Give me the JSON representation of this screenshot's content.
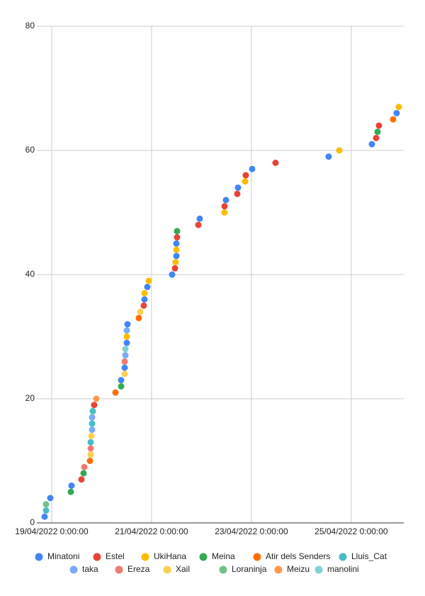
{
  "chart_data": {
    "type": "scatter",
    "xlim": [
      "2022-04-18T16:51",
      "2022-04-26T01:14"
    ],
    "xticks": [
      {
        "value": "2022-04-19T00:00",
        "label": "19/04/2022 0:00:00"
      },
      {
        "value": "2022-04-21T00:00",
        "label": "21/04/2022 0:00:00"
      },
      {
        "value": "2022-04-23T00:00",
        "label": "23/04/2022 0:00:00"
      },
      {
        "value": "2022-04-25T00:00",
        "label": "25/04/2022 0:00:00"
      }
    ],
    "ylim": [
      0,
      80
    ],
    "yticks": [
      0,
      20,
      40,
      60,
      80
    ],
    "grid": true,
    "legend": "bottom",
    "series": [
      {
        "name": "Minatoni",
        "color": "#4285f4",
        "values": [
          1,
          4,
          6,
          23,
          25,
          29,
          32,
          36,
          38,
          40,
          43,
          45,
          49,
          52,
          54,
          57,
          59,
          61,
          66
        ],
        "x": [
          "2022-04-18T20:36",
          "2022-04-18T23:19",
          "2022-04-19T09:32",
          "2022-04-20T09:22",
          "2022-04-20T11:04",
          "2022-04-20T12:06",
          "2022-04-20T12:26",
          "2022-04-20T20:36",
          "2022-04-20T21:58",
          "2022-04-21T09:53",
          "2022-04-21T11:56",
          "2022-04-21T11:56",
          "2022-04-21T23:10",
          "2022-04-22T11:46",
          "2022-04-22T17:33",
          "2022-04-23T00:22",
          "2022-04-24T13:08",
          "2022-04-25T09:54",
          "2022-04-25T21:49"
        ]
      },
      {
        "name": "Estel",
        "color": "#ea4335",
        "values": [
          7,
          19,
          35,
          41,
          46,
          48,
          51,
          53,
          56,
          58,
          62,
          64
        ],
        "x": [
          "2022-04-19T14:18",
          "2022-04-19T20:26",
          "2022-04-20T20:16",
          "2022-04-21T11:15",
          "2022-04-21T12:16",
          "2022-04-21T22:29",
          "2022-04-22T11:05",
          "2022-04-22T17:13",
          "2022-04-22T21:18",
          "2022-04-23T11:36",
          "2022-04-25T11:57",
          "2022-04-25T13:19"
        ]
      },
      {
        "name": "UkiHana",
        "color": "#fbbc04",
        "values": [
          30,
          37,
          39,
          42,
          44,
          50,
          55,
          60,
          67
        ],
        "x": [
          "2022-04-20T12:06",
          "2022-04-20T20:36",
          "2022-04-20T22:39",
          "2022-04-21T11:35",
          "2022-04-21T11:56",
          "2022-04-22T11:05",
          "2022-04-22T20:57",
          "2022-04-24T18:15",
          "2022-04-25T22:51"
        ]
      },
      {
        "name": "Meina",
        "color": "#34a853",
        "values": [
          5,
          8,
          22,
          47,
          63
        ],
        "x": [
          "2022-04-19T09:12",
          "2022-04-19T15:19",
          "2022-04-20T09:22",
          "2022-04-21T12:16",
          "2022-04-25T12:38"
        ]
      },
      {
        "name": "Atir dels Senders",
        "color": "#ff6d01",
        "values": [
          10,
          21,
          33,
          65
        ],
        "x": [
          "2022-04-19T18:23",
          "2022-04-20T06:39",
          "2022-04-20T17:53",
          "2022-04-25T20:07"
        ]
      },
      {
        "name": "Lluis_Cat",
        "color": "#46bdc6",
        "values": [
          2,
          13,
          16,
          18
        ],
        "x": [
          "2022-04-18T21:17",
          "2022-04-19T18:44",
          "2022-04-19T19:25",
          "2022-04-19T19:45"
        ]
      },
      {
        "name": "taka",
        "color": "#7baaf7",
        "values": [
          15,
          17,
          27,
          31
        ],
        "x": [
          "2022-04-19T19:25",
          "2022-04-19T19:25",
          "2022-04-20T11:25",
          "2022-04-20T12:06"
        ]
      },
      {
        "name": "Ereza",
        "color": "#f07b72",
        "values": [
          9,
          12,
          26
        ],
        "x": [
          "2022-04-19T15:40",
          "2022-04-19T18:44",
          "2022-04-20T11:04"
        ]
      },
      {
        "name": "Xail",
        "color": "#fcd04f",
        "values": [
          11,
          14,
          24,
          34
        ],
        "x": [
          "2022-04-19T18:44",
          "2022-04-19T19:04",
          "2022-04-20T11:04",
          "2022-04-20T18:34"
        ]
      },
      {
        "name": "Loraninja",
        "color": "#71c287",
        "values": [
          3
        ],
        "x": [
          "2022-04-18T21:17"
        ]
      },
      {
        "name": "Meizu",
        "color": "#ff994d",
        "values": [
          20
        ],
        "x": [
          "2022-04-19T21:27"
        ]
      },
      {
        "name": "manolini",
        "color": "#7ed1d7",
        "values": [
          28
        ],
        "x": [
          "2022-04-20T11:25"
        ]
      }
    ]
  }
}
